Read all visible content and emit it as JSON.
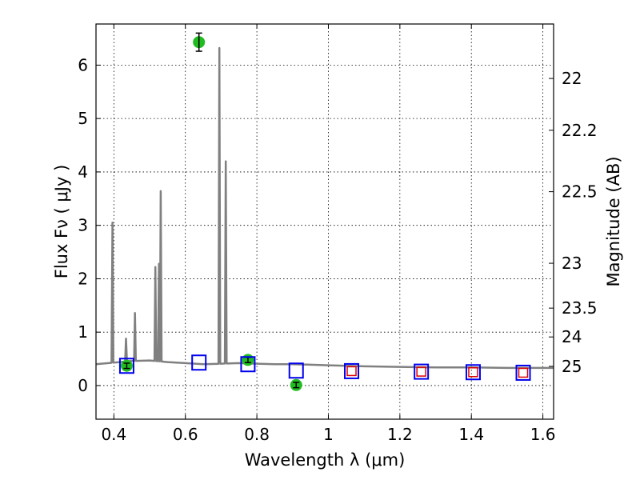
{
  "chart_data": {
    "type": "scatter",
    "xlabel": "Wavelength  λ (μm)",
    "ylabel": "Flux  Fν  ( μJy )",
    "ylabel_right": "Magnitude (AB)",
    "xlim": [
      0.35,
      1.63
    ],
    "ylim": [
      -0.63,
      6.77
    ],
    "grid": true,
    "x_ticks": [
      0.4,
      0.6,
      0.8,
      1.0,
      1.2,
      1.4,
      1.6
    ],
    "x_tick_labels": [
      "0.4",
      "0.6",
      "0.8",
      "1",
      "1.2",
      "1.4",
      "1.6"
    ],
    "y_ticks": [
      0,
      1,
      2,
      3,
      4,
      5,
      6
    ],
    "y_tick_labels": [
      "0",
      "1",
      "2",
      "3",
      "4",
      "5",
      "6"
    ],
    "right_ticks": [
      {
        "label": "22",
        "flux": 5.75
      },
      {
        "label": "22.2",
        "flux": 4.78
      },
      {
        "label": "22.5",
        "flux": 3.63
      },
      {
        "label": "23",
        "flux": 2.29
      },
      {
        "label": "23.5",
        "flux": 1.45
      },
      {
        "label": "24",
        "flux": 0.91
      },
      {
        "label": "25",
        "flux": 0.36
      }
    ],
    "series": [
      {
        "kind": "line",
        "color": "#808080",
        "continuum": [
          [
            0.35,
            0.4
          ],
          [
            0.4,
            0.43
          ],
          [
            0.45,
            0.46
          ],
          [
            0.5,
            0.47
          ],
          [
            0.55,
            0.44
          ],
          [
            0.6,
            0.42
          ],
          [
            0.65,
            0.4
          ],
          [
            0.7,
            0.41
          ],
          [
            0.75,
            0.42
          ],
          [
            0.8,
            0.41
          ],
          [
            0.85,
            0.4
          ],
          [
            0.9,
            0.4
          ],
          [
            0.95,
            0.39
          ],
          [
            1.0,
            0.38
          ],
          [
            1.1,
            0.36
          ],
          [
            1.2,
            0.35
          ],
          [
            1.3,
            0.34
          ],
          [
            1.4,
            0.34
          ],
          [
            1.5,
            0.33
          ],
          [
            1.63,
            0.33
          ]
        ],
        "lines": [
          {
            "x": 0.396,
            "peak": 3.05
          },
          {
            "x": 0.434,
            "peak": 0.88
          },
          {
            "x": 0.459,
            "peak": 1.36
          },
          {
            "x": 0.516,
            "peak": 2.22
          },
          {
            "x": 0.526,
            "peak": 2.28
          },
          {
            "x": 0.531,
            "peak": 3.64
          },
          {
            "x": 0.695,
            "peak": 6.32
          },
          {
            "x": 0.713,
            "peak": 4.2
          }
        ]
      },
      {
        "kind": "observed",
        "color": "#22bb22",
        "points": [
          {
            "x": 0.436,
            "y": 0.37,
            "err": 0.05
          },
          {
            "x": 0.638,
            "y": 6.43,
            "err": 0.17
          },
          {
            "x": 0.775,
            "y": 0.48,
            "err": 0.05
          },
          {
            "x": 0.91,
            "y": 0.01,
            "err": 0.05
          }
        ]
      },
      {
        "kind": "model",
        "color": "#0000ee",
        "points": [
          {
            "x": 0.436,
            "y": 0.37
          },
          {
            "x": 0.638,
            "y": 0.43
          },
          {
            "x": 0.775,
            "y": 0.4
          },
          {
            "x": 0.91,
            "y": 0.28
          },
          {
            "x": 1.065,
            "y": 0.27
          },
          {
            "x": 1.26,
            "y": 0.26
          },
          {
            "x": 1.405,
            "y": 0.25
          },
          {
            "x": 1.545,
            "y": 0.24
          }
        ]
      },
      {
        "kind": "model-secondary",
        "color": "#dd0000",
        "points": [
          {
            "x": 1.065,
            "y": 0.27
          },
          {
            "x": 1.26,
            "y": 0.26
          },
          {
            "x": 1.405,
            "y": 0.25
          },
          {
            "x": 1.545,
            "y": 0.24
          }
        ]
      }
    ]
  }
}
